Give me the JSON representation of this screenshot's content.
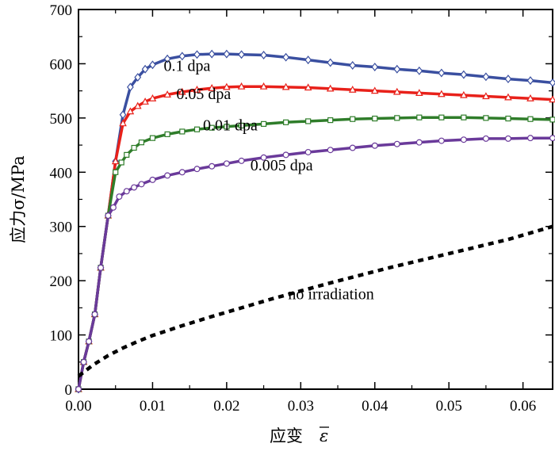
{
  "chart_data": {
    "type": "line",
    "xlabel": "应变",
    "xlabel_symbol": "ε",
    "ylabel": "应力σ/MPa",
    "xlim": [
      0,
      0.064
    ],
    "ylim": [
      0,
      700
    ],
    "x_ticks": [
      "0.00",
      "0.01",
      "0.02",
      "0.03",
      "0.04",
      "0.05",
      "0.06"
    ],
    "y_ticks": [
      "0",
      "100",
      "200",
      "300",
      "400",
      "500",
      "600",
      "700"
    ],
    "grid": false,
    "series": [
      {
        "name": "0.1 dpa",
        "color": "#3a4fa0",
        "marker": "diamond",
        "x": [
          0.0,
          0.0007,
          0.0014,
          0.0022,
          0.003,
          0.004,
          0.005,
          0.006,
          0.007,
          0.008,
          0.009,
          0.01,
          0.012,
          0.014,
          0.016,
          0.018,
          0.02,
          0.022,
          0.025,
          0.028,
          0.031,
          0.034,
          0.037,
          0.04,
          0.043,
          0.046,
          0.049,
          0.052,
          0.055,
          0.058,
          0.061,
          0.064
        ],
        "y": [
          0,
          50,
          88,
          138,
          224,
          320,
          420,
          506,
          557,
          575,
          590,
          598,
          609,
          614,
          617,
          618,
          618,
          617,
          616,
          612,
          607,
          602,
          597,
          594,
          590,
          587,
          583,
          580,
          576,
          572,
          569,
          565
        ]
      },
      {
        "name": "0.05 dpa",
        "color": "#e8211a",
        "marker": "triangle",
        "x": [
          0.0,
          0.0007,
          0.0014,
          0.0022,
          0.003,
          0.004,
          0.005,
          0.006,
          0.007,
          0.008,
          0.009,
          0.01,
          0.012,
          0.014,
          0.016,
          0.018,
          0.02,
          0.022,
          0.025,
          0.028,
          0.031,
          0.034,
          0.037,
          0.04,
          0.043,
          0.046,
          0.049,
          0.052,
          0.055,
          0.058,
          0.061,
          0.064
        ],
        "y": [
          0,
          50,
          88,
          138,
          224,
          320,
          420,
          490,
          512,
          522,
          530,
          536,
          543,
          548,
          552,
          555,
          557,
          558,
          558,
          557,
          556,
          554,
          552,
          550,
          548,
          546,
          544,
          542,
          540,
          538,
          536,
          534
        ]
      },
      {
        "name": "0.01 dpa",
        "color": "#2f7d2a",
        "marker": "square",
        "x": [
          0.0,
          0.0007,
          0.0014,
          0.0022,
          0.003,
          0.004,
          0.005,
          0.0058,
          0.0065,
          0.0075,
          0.0085,
          0.01,
          0.012,
          0.014,
          0.016,
          0.018,
          0.02,
          0.022,
          0.025,
          0.028,
          0.031,
          0.034,
          0.037,
          0.04,
          0.043,
          0.046,
          0.049,
          0.052,
          0.055,
          0.058,
          0.061,
          0.064
        ],
        "y": [
          0,
          50,
          88,
          138,
          224,
          320,
          400,
          418,
          432,
          445,
          455,
          463,
          470,
          475,
          479,
          482,
          484,
          486,
          489,
          492,
          494,
          496,
          498,
          499,
          500,
          501,
          501,
          501,
          500,
          499,
          498,
          497
        ]
      },
      {
        "name": "0.005 dpa",
        "color": "#6a3a9a",
        "marker": "circle",
        "x": [
          0.0,
          0.0007,
          0.0014,
          0.0022,
          0.003,
          0.004,
          0.0047,
          0.0055,
          0.0065,
          0.0075,
          0.0085,
          0.01,
          0.012,
          0.014,
          0.016,
          0.018,
          0.02,
          0.022,
          0.025,
          0.028,
          0.031,
          0.034,
          0.037,
          0.04,
          0.043,
          0.046,
          0.049,
          0.052,
          0.055,
          0.058,
          0.061,
          0.064
        ],
        "y": [
          0,
          50,
          88,
          138,
          224,
          320,
          335,
          355,
          365,
          372,
          378,
          386,
          394,
          400,
          406,
          411,
          416,
          421,
          427,
          432,
          437,
          441,
          445,
          449,
          452,
          455,
          458,
          460,
          462,
          462,
          463,
          463
        ]
      },
      {
        "name": "no irradiation",
        "color": "#000000",
        "marker": "none",
        "dashed": true,
        "x": [
          0.0,
          0.002,
          0.004,
          0.006,
          0.008,
          0.01,
          0.014,
          0.018,
          0.022,
          0.026,
          0.03,
          0.034,
          0.038,
          0.042,
          0.046,
          0.05,
          0.054,
          0.058,
          0.062,
          0.064
        ],
        "y": [
          24,
          45,
          62,
          76,
          88,
          99,
          117,
          134,
          150,
          166,
          181,
          196,
          210,
          224,
          237,
          250,
          263,
          276,
          292,
          300
        ]
      }
    ]
  }
}
